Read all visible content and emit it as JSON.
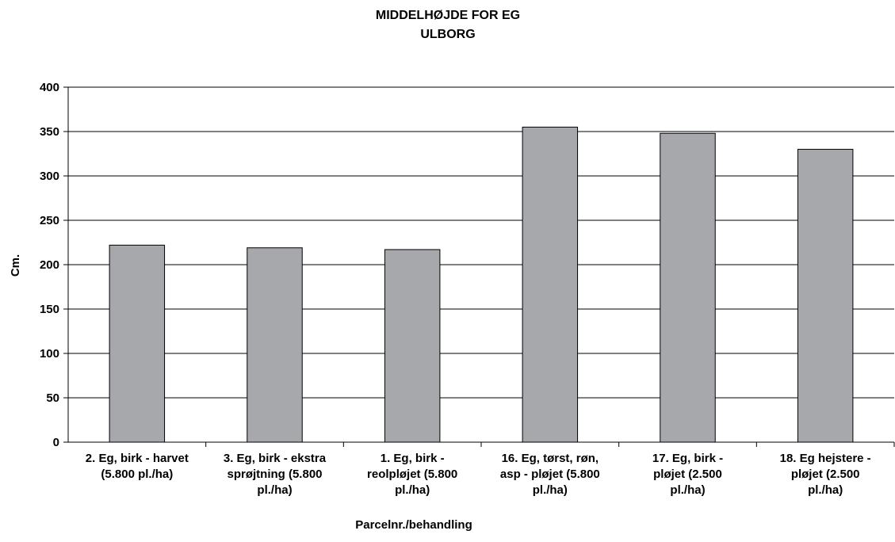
{
  "chart_data": {
    "type": "bar",
    "title_lines": [
      "MIDDELHØJDE FOR EG",
      "ULBORG"
    ],
    "xlabel": "Parcelnr./behandling",
    "ylabel": "Cm.",
    "ylim": [
      0,
      400
    ],
    "yticks": [
      0,
      50,
      100,
      150,
      200,
      250,
      300,
      350,
      400
    ],
    "grid": true,
    "legend": "none",
    "bar_color": "#a6a8ab",
    "categories": [
      [
        "2. Eg, birk - harvet",
        "(5.800 pl./ha)"
      ],
      [
        "3. Eg, birk - ekstra",
        "sprøjtning (5.800",
        "pl./ha)"
      ],
      [
        "1. Eg, birk -",
        "reolpløjet (5.800",
        "pl./ha)"
      ],
      [
        "16. Eg, tørst, røn,",
        "asp - pløjet (5.800",
        "pl./ha)"
      ],
      [
        "17. Eg, birk -",
        "pløjet (2.500",
        "pl./ha)"
      ],
      [
        "18. Eg hejstere -",
        "pløjet (2.500",
        "pl./ha)"
      ]
    ],
    "values": [
      222,
      219,
      217,
      355,
      348,
      330
    ]
  }
}
